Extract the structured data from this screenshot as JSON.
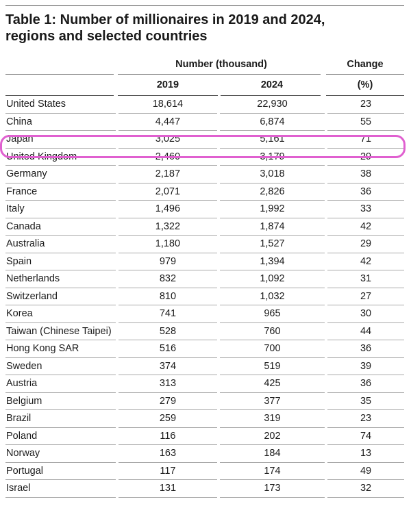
{
  "title_line1": "Table 1: Number of millionaires in 2019 and 2024,",
  "title_line2": "regions and selected countries",
  "header": {
    "group_number": "Number (thousand)",
    "group_change": "Change",
    "col_2019": "2019",
    "col_2024": "2024",
    "col_pct": "(%)"
  },
  "highlight_color": "#e060d0",
  "rows": [
    {
      "country": "United States",
      "y2019": "18,614",
      "y2024": "22,930",
      "change": "23"
    },
    {
      "country": "China",
      "y2019": "4,447",
      "y2024": "6,874",
      "change": "55"
    },
    {
      "country": "Japan",
      "y2019": "3,025",
      "y2024": "5,161",
      "change": "71"
    },
    {
      "country": "United Kingdom",
      "y2019": "2,460",
      "y2024": "3,179",
      "change": "29"
    },
    {
      "country": "Germany",
      "y2019": "2,187",
      "y2024": "3,018",
      "change": "38"
    },
    {
      "country": "France",
      "y2019": "2,071",
      "y2024": "2,826",
      "change": "36"
    },
    {
      "country": "Italy",
      "y2019": "1,496",
      "y2024": "1,992",
      "change": "33"
    },
    {
      "country": "Canada",
      "y2019": "1,322",
      "y2024": "1,874",
      "change": "42"
    },
    {
      "country": "Australia",
      "y2019": "1,180",
      "y2024": "1,527",
      "change": "29"
    },
    {
      "country": "Spain",
      "y2019": "979",
      "y2024": "1,394",
      "change": "42"
    },
    {
      "country": "Netherlands",
      "y2019": "832",
      "y2024": "1,092",
      "change": "31"
    },
    {
      "country": "Switzerland",
      "y2019": "810",
      "y2024": "1,032",
      "change": "27"
    },
    {
      "country": "Korea",
      "y2019": "741",
      "y2024": "965",
      "change": "30"
    },
    {
      "country": "Taiwan (Chinese Taipei)",
      "y2019": "528",
      "y2024": "760",
      "change": "44"
    },
    {
      "country": "Hong Kong SAR",
      "y2019": "516",
      "y2024": "700",
      "change": "36"
    },
    {
      "country": "Sweden",
      "y2019": "374",
      "y2024": "519",
      "change": "39"
    },
    {
      "country": "Austria",
      "y2019": "313",
      "y2024": "425",
      "change": "36"
    },
    {
      "country": "Belgium",
      "y2019": "279",
      "y2024": "377",
      "change": "35"
    },
    {
      "country": "Brazil",
      "y2019": "259",
      "y2024": "319",
      "change": "23"
    },
    {
      "country": "Poland",
      "y2019": "116",
      "y2024": "202",
      "change": "74"
    },
    {
      "country": "Norway",
      "y2019": "163",
      "y2024": "184",
      "change": "13"
    },
    {
      "country": "Portugal",
      "y2019": "117",
      "y2024": "174",
      "change": "49"
    },
    {
      "country": "Israel",
      "y2019": "131",
      "y2024": "173",
      "change": "32"
    }
  ]
}
